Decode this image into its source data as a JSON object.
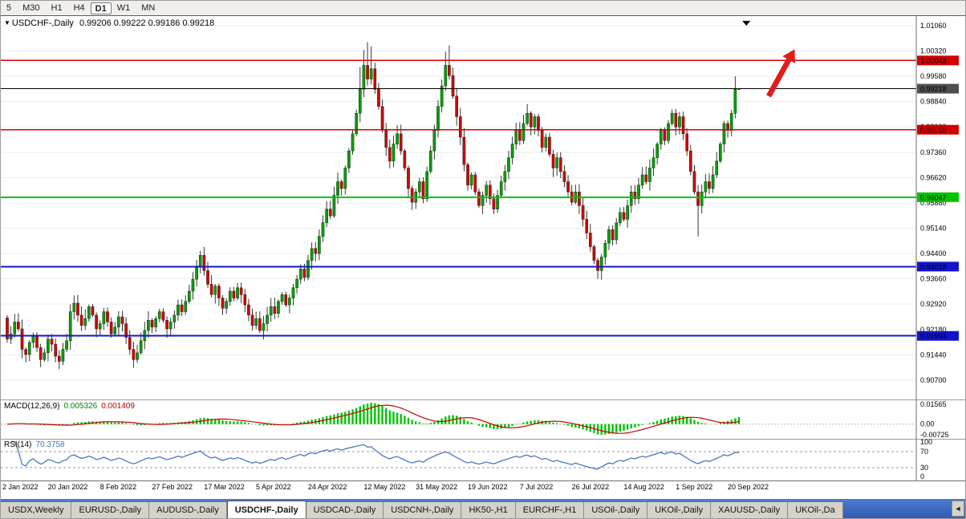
{
  "toolbar": {
    "periods": [
      {
        "label": "5",
        "active": false
      },
      {
        "label": "M30",
        "active": false
      },
      {
        "label": "H1",
        "active": false
      },
      {
        "label": "H4",
        "active": false
      },
      {
        "label": "D1",
        "active": true
      },
      {
        "label": "W1",
        "active": false
      },
      {
        "label": "MN",
        "active": false
      }
    ]
  },
  "chart": {
    "title": "USDCHF-,Daily",
    "ohlc": "0.99206 0.99222 0.99186 0.99218"
  },
  "chart_data": {
    "type": "candlestick",
    "symbol": "USDCHF-",
    "timeframe": "Daily",
    "title": "USDCHF-,Daily 0.99206 0.99222 0.99186 0.99218",
    "y_axis": {
      "labels": [
        1.0106,
        1.0032,
        0.9958,
        0.9884,
        0.981,
        0.9736,
        0.9662,
        0.9588,
        0.9514,
        0.944,
        0.9366,
        0.9292,
        0.9218,
        0.9144,
        0.907
      ],
      "decimals": 5
    },
    "x_axis": {
      "labels": [
        "2 Jan 2022",
        "20 Jan 2022",
        "8 Feb 2022",
        "27 Feb 2022",
        "17 Mar 2022",
        "5 Apr 2022",
        "24 Apr 2022",
        "12 May 2022",
        "31 May 2022",
        "19 Jun 2022",
        "7 Jul 2022",
        "26 Jul 2022",
        "14 Aug 2022",
        "1 Sep 2022",
        "20 Sep 2022"
      ]
    },
    "first_open": 0.9252,
    "closes": [
      0.919,
      0.9205,
      0.924,
      0.922,
      0.916,
      0.9145,
      0.918,
      0.92,
      0.9165,
      0.913,
      0.915,
      0.919,
      0.9175,
      0.914,
      0.9125,
      0.916,
      0.9185,
      0.927,
      0.9295,
      0.926,
      0.923,
      0.925,
      0.9285,
      0.926,
      0.922,
      0.9235,
      0.927,
      0.924,
      0.9205,
      0.9225,
      0.9255,
      0.9235,
      0.9195,
      0.916,
      0.913,
      0.915,
      0.9185,
      0.9215,
      0.9245,
      0.9225,
      0.925,
      0.927,
      0.9245,
      0.922,
      0.924,
      0.926,
      0.929,
      0.927,
      0.93,
      0.933,
      0.9365,
      0.94,
      0.9435,
      0.939,
      0.935,
      0.932,
      0.9345,
      0.931,
      0.928,
      0.93,
      0.933,
      0.931,
      0.934,
      0.932,
      0.929,
      0.926,
      0.923,
      0.925,
      0.9215,
      0.9235,
      0.926,
      0.9285,
      0.9265,
      0.93,
      0.932,
      0.929,
      0.931,
      0.934,
      0.9365,
      0.9395,
      0.937,
      0.942,
      0.9455,
      0.944,
      0.949,
      0.953,
      0.957,
      0.955,
      0.961,
      0.965,
      0.963,
      0.969,
      0.974,
      0.979,
      0.985,
      0.992,
      0.999,
      0.995,
      0.998,
      0.992,
      0.987,
      0.98,
      0.975,
      0.971,
      0.976,
      0.979,
      0.974,
      0.969,
      0.963,
      0.959,
      0.962,
      0.965,
      0.96,
      0.968,
      0.974,
      0.98,
      0.987,
      0.993,
      0.999,
      0.996,
      0.99,
      0.984,
      0.978,
      0.97,
      0.964,
      0.967,
      0.962,
      0.958,
      0.961,
      0.964,
      0.96,
      0.957,
      0.961,
      0.965,
      0.968,
      0.972,
      0.976,
      0.98,
      0.977,
      0.982,
      0.985,
      0.981,
      0.984,
      0.98,
      0.975,
      0.978,
      0.973,
      0.969,
      0.972,
      0.968,
      0.965,
      0.962,
      0.959,
      0.962,
      0.958,
      0.954,
      0.95,
      0.946,
      0.942,
      0.939,
      0.943,
      0.947,
      0.951,
      0.948,
      0.953,
      0.956,
      0.954,
      0.958,
      0.962,
      0.96,
      0.964,
      0.967,
      0.965,
      0.969,
      0.972,
      0.976,
      0.98,
      0.977,
      0.982,
      0.985,
      0.981,
      0.984,
      0.979,
      0.974,
      0.968,
      0.962,
      0.958,
      0.962,
      0.965,
      0.963,
      0.967,
      0.971,
      0.976,
      0.982,
      0.98,
      0.985,
      0.992,
      0.99218
    ],
    "wick_overrides": {
      "0": {
        "h": 0.926,
        "l": 0.918
      },
      "9": {
        "l": 0.9108
      },
      "14": {
        "l": 0.9102
      },
      "34": {
        "l": 0.9106
      },
      "52": {
        "h": 0.9448
      },
      "95": {
        "h": 0.9985
      },
      "96": {
        "h": 1.0035
      },
      "97": {
        "h": 1.0058
      },
      "98": {
        "h": 1.0046
      },
      "118": {
        "h": 1.003
      },
      "119": {
        "h": 1.0048
      },
      "159": {
        "l": 0.9366
      },
      "186": {
        "l": 0.949
      },
      "196": {
        "h": 0.9958
      }
    },
    "last_candle": [
      0.99206,
      0.99222,
      0.99186,
      0.99218
    ],
    "hlines": [
      {
        "price": 1.00043,
        "label": "1.00043",
        "color": "#d20000",
        "width": 1.4
      },
      {
        "price": 0.98019,
        "label": "0.98019",
        "color": "#d20000",
        "width": 1.4
      },
      {
        "price": 0.96047,
        "label": "0.96047",
        "color": "#00c400",
        "width": 2
      },
      {
        "price": 0.94018,
        "label": "0.94018",
        "color": "#1414cc",
        "width": 2
      },
      {
        "price": 0.91993,
        "label": "0.91993",
        "color": "#1414cc",
        "width": 2
      }
    ],
    "current_price": {
      "price": 0.99218,
      "label": "0.99218",
      "line_color": "#000000",
      "badge_color": "#4f4f4f"
    },
    "colors": {
      "up": "#00a000",
      "down": "#d40000",
      "wick": "#222222",
      "grid": "#ededed"
    }
  },
  "macd": {
    "name": "MACD(12,26,9)",
    "main_value": "0.005326",
    "signal_value": "0.001409",
    "fast": 12,
    "slow": 26,
    "signal": 9,
    "axis_labels": [
      "0.01565",
      "0.00",
      "-0.00725"
    ],
    "hist_color": "#00c400",
    "signal_color": "#cc0000"
  },
  "rsi": {
    "name": "RSI(14)",
    "value": "70.3758",
    "period": 14,
    "axis_labels": [
      "100",
      "70",
      "30",
      "0"
    ],
    "levels": [
      70,
      30
    ],
    "line_color": "#4879b9"
  },
  "annotations": {
    "arrow": {
      "bar_from": 205,
      "price_from": 0.99,
      "bar_to": 212,
      "price_to": 1.0037,
      "color": "#e21b1b"
    },
    "marker": {
      "bar": 199,
      "price": 1.012,
      "color": "#000000"
    }
  },
  "tabs": {
    "items": [
      {
        "label": "USDX,Weekly"
      },
      {
        "label": "EURUSD-,Daily"
      },
      {
        "label": "AUDUSD-,Daily"
      },
      {
        "label": "USDCHF-,Daily"
      },
      {
        "label": "USDCAD-,Daily"
      },
      {
        "label": "USDCNH-,Daily"
      },
      {
        "label": "HK50-,H1"
      },
      {
        "label": "EURCHF-,H1"
      },
      {
        "label": "USOil-,Daily"
      },
      {
        "label": "UKOil-,Daily"
      },
      {
        "label": "XAUUSD-,Daily"
      },
      {
        "label": "UKOil-,Da"
      }
    ],
    "active_index": 3,
    "scroll_icon": "◄"
  }
}
